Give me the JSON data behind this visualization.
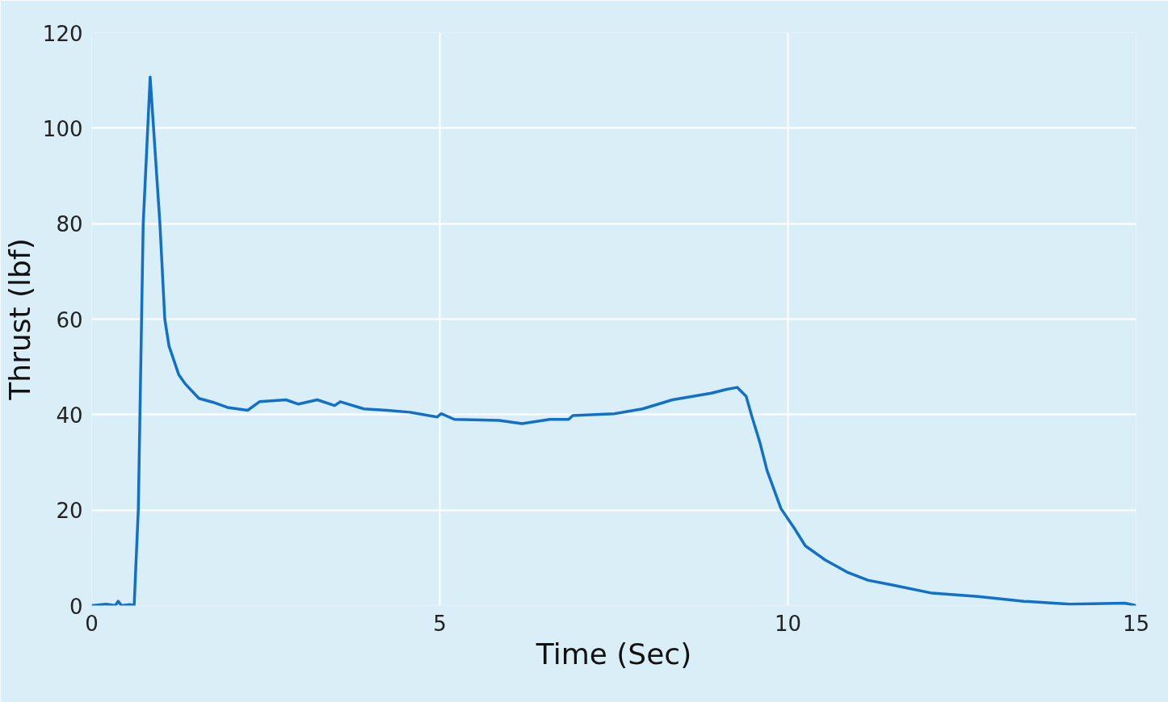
{
  "chart_data": {
    "type": "line",
    "xlabel": "Time (Sec)",
    "ylabel": "Thrust (lbf)",
    "xlim": [
      0,
      15
    ],
    "ylim": [
      0,
      120
    ],
    "xticks": [
      0,
      5,
      10,
      15
    ],
    "yticks": [
      0,
      20,
      40,
      60,
      80,
      100,
      120
    ],
    "grid": true,
    "line_style": "solid",
    "series": [
      {
        "color": "#1170c8",
        "x": [
          0,
          0.21,
          0.34,
          0.38,
          0.43,
          0.55,
          0.61,
          0.67,
          0.74,
          0.84,
          0.98,
          1.05,
          1.11,
          1.25,
          1.34,
          1.54,
          1.74,
          1.95,
          2.24,
          2.41,
          2.79,
          2.97,
          3.24,
          3.49,
          3.57,
          3.91,
          4.24,
          4.57,
          4.96,
          5.02,
          5.21,
          5.85,
          6.18,
          6.58,
          6.85,
          6.91,
          7.51,
          7.91,
          8.34,
          8.9,
          9.12,
          9.27,
          9.4,
          9.48,
          9.6,
          9.7,
          9.9,
          10.1,
          10.25,
          10.53,
          10.85,
          11.15,
          11.5,
          12.07,
          12.73,
          13.39,
          14.05,
          14.84,
          15
        ],
        "values": [
          0,
          0.3,
          0,
          0.9,
          0,
          0.2,
          0,
          20.3,
          80,
          110.7,
          80,
          60,
          54.4,
          48.4,
          46.5,
          43.4,
          42.6,
          41.5,
          40.9,
          42.7,
          43.1,
          42.2,
          43.1,
          41.9,
          42.7,
          41.2,
          40.9,
          40.5,
          39.5,
          40.2,
          39,
          38.8,
          38.1,
          39,
          39,
          39.8,
          40.2,
          41.2,
          43.1,
          44.5,
          45.3,
          45.7,
          43.8,
          39.7,
          34,
          28.3,
          20.3,
          16,
          12.5,
          9.6,
          7,
          5.3,
          4.3,
          2.6,
          1.9,
          0.9,
          0.3,
          0.5,
          0
        ]
      }
    ]
  }
}
